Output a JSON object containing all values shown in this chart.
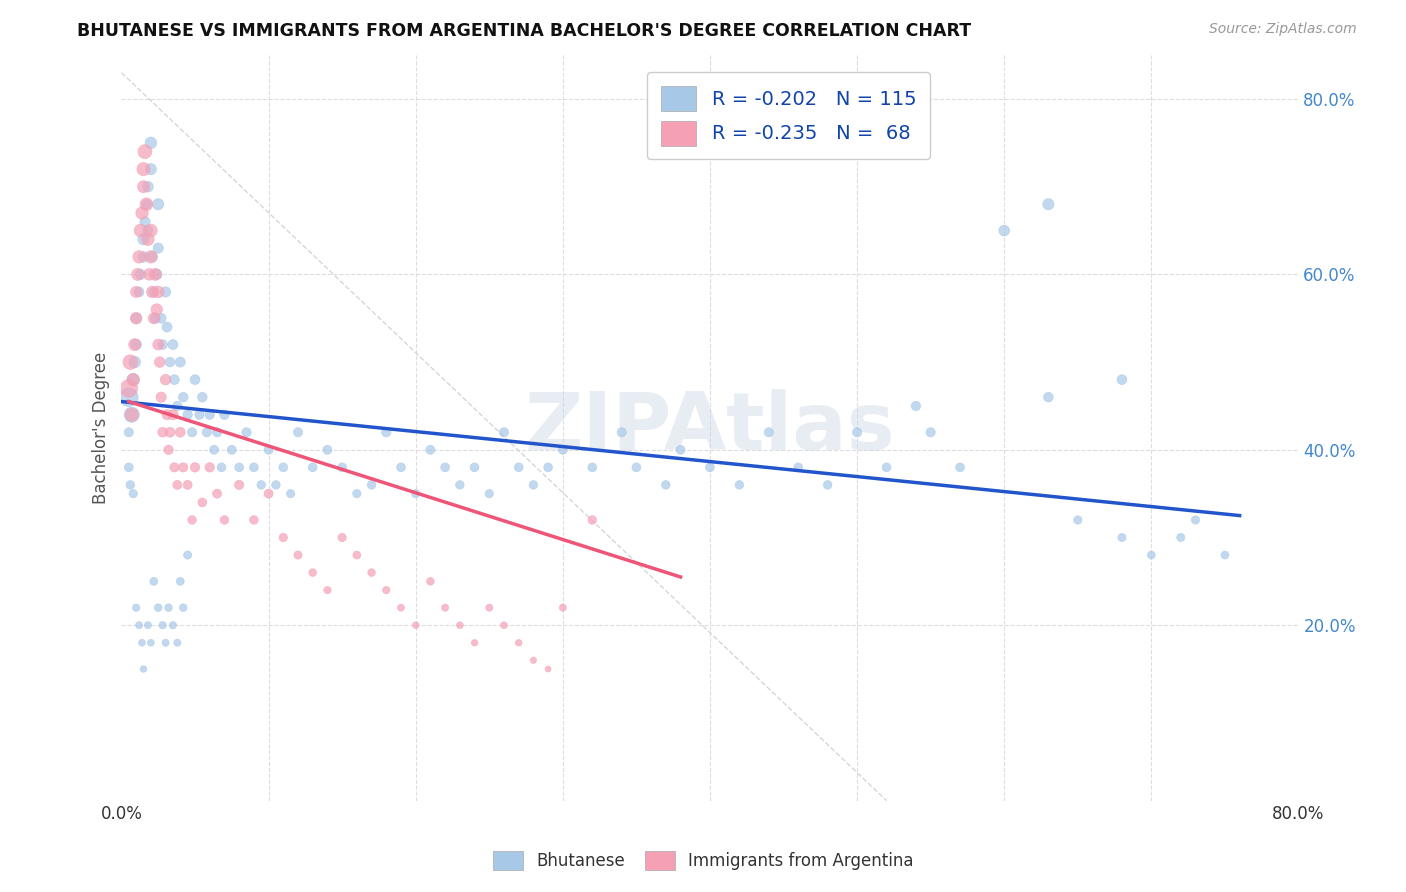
{
  "title": "BHUTANESE VS IMMIGRANTS FROM ARGENTINA BACHELOR'S DEGREE CORRELATION CHART",
  "source": "Source: ZipAtlas.com",
  "ylabel": "Bachelor's Degree",
  "legend1_R": "-0.202",
  "legend1_N": "115",
  "legend2_R": "-0.235",
  "legend2_N": "68",
  "legend1_label": "Bhutanese",
  "legend2_label": "Immigrants from Argentina",
  "blue_color": "#a8c8e8",
  "pink_color": "#f5a0b5",
  "blue_line_color": "#2255cc",
  "pink_line_color": "#ee5577",
  "dashed_line_color": "#cccccc",
  "watermark": "ZIPAtlas",
  "xlim": [
    0.0,
    0.8
  ],
  "ylim": [
    0.0,
    0.85
  ],
  "blue_scatter_x": [
    0.005,
    0.007,
    0.008,
    0.009,
    0.01,
    0.01,
    0.012,
    0.013,
    0.015,
    0.015,
    0.016,
    0.017,
    0.018,
    0.018,
    0.02,
    0.02,
    0.021,
    0.022,
    0.023,
    0.024,
    0.025,
    0.025,
    0.027,
    0.028,
    0.03,
    0.031,
    0.033,
    0.035,
    0.036,
    0.038,
    0.04,
    0.042,
    0.045,
    0.048,
    0.05,
    0.053,
    0.055,
    0.058,
    0.06,
    0.063,
    0.065,
    0.068,
    0.07,
    0.075,
    0.08,
    0.085,
    0.09,
    0.095,
    0.1,
    0.105,
    0.11,
    0.115,
    0.12,
    0.13,
    0.14,
    0.15,
    0.16,
    0.17,
    0.18,
    0.19,
    0.2,
    0.21,
    0.22,
    0.23,
    0.24,
    0.25,
    0.26,
    0.27,
    0.28,
    0.29,
    0.3,
    0.32,
    0.34,
    0.35,
    0.37,
    0.38,
    0.4,
    0.42,
    0.44,
    0.46,
    0.48,
    0.5,
    0.52,
    0.54,
    0.55,
    0.57,
    0.6,
    0.63,
    0.65,
    0.68,
    0.7,
    0.72,
    0.73,
    0.75,
    0.63,
    0.68,
    0.005,
    0.005,
    0.006,
    0.008,
    0.01,
    0.012,
    0.014,
    0.015,
    0.018,
    0.02,
    0.022,
    0.025,
    0.028,
    0.03,
    0.032,
    0.035,
    0.038,
    0.04,
    0.042,
    0.045
  ],
  "blue_scatter_y": [
    0.46,
    0.44,
    0.48,
    0.5,
    0.52,
    0.55,
    0.58,
    0.6,
    0.62,
    0.64,
    0.66,
    0.68,
    0.65,
    0.7,
    0.72,
    0.75,
    0.62,
    0.58,
    0.55,
    0.6,
    0.63,
    0.68,
    0.55,
    0.52,
    0.58,
    0.54,
    0.5,
    0.52,
    0.48,
    0.45,
    0.5,
    0.46,
    0.44,
    0.42,
    0.48,
    0.44,
    0.46,
    0.42,
    0.44,
    0.4,
    0.42,
    0.38,
    0.44,
    0.4,
    0.38,
    0.42,
    0.38,
    0.36,
    0.4,
    0.36,
    0.38,
    0.35,
    0.42,
    0.38,
    0.4,
    0.38,
    0.35,
    0.36,
    0.42,
    0.38,
    0.35,
    0.4,
    0.38,
    0.36,
    0.38,
    0.35,
    0.42,
    0.38,
    0.36,
    0.38,
    0.4,
    0.38,
    0.42,
    0.38,
    0.36,
    0.4,
    0.38,
    0.36,
    0.42,
    0.38,
    0.36,
    0.42,
    0.38,
    0.45,
    0.42,
    0.38,
    0.65,
    0.68,
    0.32,
    0.3,
    0.28,
    0.3,
    0.32,
    0.28,
    0.46,
    0.48,
    0.42,
    0.38,
    0.36,
    0.35,
    0.22,
    0.2,
    0.18,
    0.15,
    0.2,
    0.18,
    0.25,
    0.22,
    0.2,
    0.18,
    0.22,
    0.2,
    0.18,
    0.25,
    0.22,
    0.28
  ],
  "blue_scatter_sizes": [
    180,
    120,
    80,
    70,
    60,
    55,
    50,
    55,
    60,
    65,
    55,
    50,
    55,
    60,
    65,
    70,
    55,
    50,
    52,
    58,
    55,
    65,
    50,
    48,
    55,
    52,
    48,
    52,
    50,
    46,
    52,
    48,
    46,
    44,
    50,
    46,
    48,
    44,
    46,
    42,
    44,
    40,
    46,
    42,
    40,
    44,
    40,
    38,
    42,
    38,
    40,
    36,
    44,
    40,
    42,
    40,
    36,
    38,
    44,
    40,
    36,
    42,
    40,
    38,
    40,
    36,
    44,
    40,
    38,
    40,
    42,
    40,
    44,
    40,
    38,
    42,
    40,
    38,
    44,
    40,
    38,
    44,
    40,
    46,
    44,
    40,
    60,
    65,
    36,
    34,
    32,
    34,
    36,
    32,
    48,
    50,
    44,
    40,
    38,
    36,
    28,
    26,
    24,
    22,
    26,
    24,
    32,
    30,
    28,
    26,
    30,
    28,
    26,
    32,
    30,
    34
  ],
  "pink_scatter_x": [
    0.005,
    0.006,
    0.007,
    0.008,
    0.009,
    0.01,
    0.01,
    0.011,
    0.012,
    0.013,
    0.014,
    0.015,
    0.015,
    0.016,
    0.017,
    0.018,
    0.019,
    0.02,
    0.02,
    0.021,
    0.022,
    0.023,
    0.024,
    0.025,
    0.025,
    0.026,
    0.027,
    0.028,
    0.03,
    0.031,
    0.032,
    0.033,
    0.035,
    0.036,
    0.038,
    0.04,
    0.042,
    0.045,
    0.048,
    0.05,
    0.055,
    0.06,
    0.065,
    0.07,
    0.08,
    0.09,
    0.1,
    0.11,
    0.12,
    0.13,
    0.14,
    0.15,
    0.16,
    0.17,
    0.18,
    0.19,
    0.2,
    0.21,
    0.22,
    0.23,
    0.24,
    0.25,
    0.26,
    0.27,
    0.28,
    0.29,
    0.3,
    0.32
  ],
  "pink_scatter_y": [
    0.47,
    0.5,
    0.44,
    0.48,
    0.52,
    0.55,
    0.58,
    0.6,
    0.62,
    0.65,
    0.67,
    0.7,
    0.72,
    0.74,
    0.68,
    0.64,
    0.6,
    0.62,
    0.65,
    0.58,
    0.55,
    0.6,
    0.56,
    0.52,
    0.58,
    0.5,
    0.46,
    0.42,
    0.48,
    0.44,
    0.4,
    0.42,
    0.44,
    0.38,
    0.36,
    0.42,
    0.38,
    0.36,
    0.32,
    0.38,
    0.34,
    0.38,
    0.35,
    0.32,
    0.36,
    0.32,
    0.35,
    0.3,
    0.28,
    0.26,
    0.24,
    0.3,
    0.28,
    0.26,
    0.24,
    0.22,
    0.2,
    0.25,
    0.22,
    0.2,
    0.18,
    0.22,
    0.2,
    0.18,
    0.16,
    0.15,
    0.22,
    0.32
  ],
  "pink_scatter_sizes": [
    160,
    110,
    90,
    80,
    75,
    70,
    65,
    75,
    80,
    85,
    80,
    75,
    90,
    100,
    85,
    80,
    70,
    80,
    85,
    70,
    65,
    75,
    68,
    62,
    72,
    58,
    54,
    48,
    58,
    52,
    46,
    50,
    54,
    44,
    42,
    50,
    44,
    42,
    38,
    46,
    40,
    46,
    42,
    38,
    44,
    38,
    42,
    36,
    34,
    30,
    28,
    36,
    32,
    30,
    28,
    25,
    22,
    30,
    26,
    24,
    22,
    26,
    24,
    22,
    20,
    18,
    26,
    38
  ],
  "blue_trendline_x": [
    0.0,
    0.76
  ],
  "blue_trendline_y": [
    0.455,
    0.325
  ],
  "pink_trendline_x": [
    0.005,
    0.38
  ],
  "pink_trendline_y": [
    0.455,
    0.255
  ],
  "dashed_line_x": [
    0.0,
    0.52
  ],
  "dashed_line_y": [
    0.83,
    0.0
  ],
  "grid_color": "#dddddd",
  "grid_yticks": [
    0.2,
    0.4,
    0.6,
    0.8
  ],
  "background_color": "#ffffff"
}
